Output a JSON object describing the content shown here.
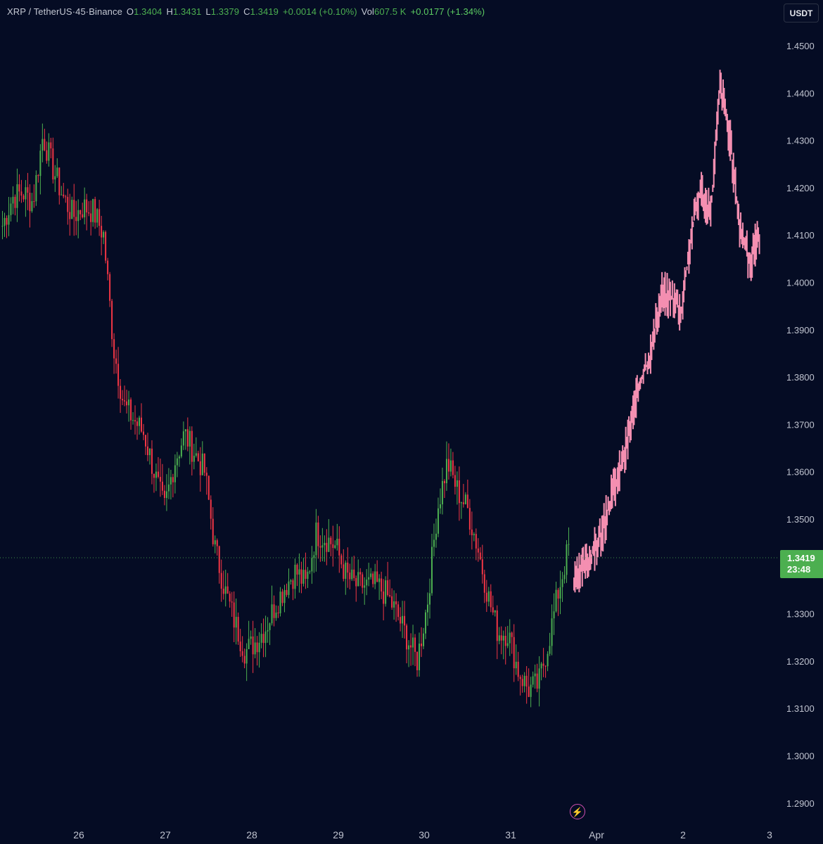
{
  "header": {
    "symbol": "XRP / TetherUS",
    "sep1": " · ",
    "interval": "45",
    "sep2": " · ",
    "exchange": "Binance",
    "open_label": "O",
    "open_value": "1.3404",
    "high_label": "H",
    "high_value": "1.3431",
    "low_label": "L",
    "low_value": "1.3379",
    "close_label": "C",
    "close_value": "1.3419",
    "change": "+0.0014 (+0.10%)",
    "vol_label": "Vol",
    "vol_value": "607.5 K",
    "change2": "+0.0177 (+1.34%)"
  },
  "currency_button": "USDT",
  "price_badge": {
    "price": "1.3419",
    "countdown": "23:48"
  },
  "colors": {
    "background": "#050c24",
    "up": "#4caf50",
    "down": "#f23645",
    "projection": "#f48fb1",
    "axis_text": "#bfc3cf"
  },
  "icons": {
    "lightning": "lightning-icon"
  },
  "chart_data": {
    "type": "candlestick",
    "title": "XRP / TetherUS · 45 · Binance",
    "ylim": [
      1.2855,
      1.4515
    ],
    "y_ticks": [
      "1.4500",
      "1.4400",
      "1.4300",
      "1.4200",
      "1.4100",
      "1.4000",
      "1.3900",
      "1.3800",
      "1.3700",
      "1.3600",
      "1.3500",
      "1.3300",
      "1.3200",
      "1.3100",
      "1.3000",
      "1.2900"
    ],
    "x_ticks": [
      "26",
      "27",
      "28",
      "29",
      "30",
      "31",
      "Apr",
      "2",
      "3"
    ],
    "last_price": 1.3419,
    "candles_approx_close": [
      1.412,
      1.418,
      1.419,
      1.417,
      1.431,
      1.424,
      1.418,
      1.414,
      1.416,
      1.415,
      1.41,
      1.386,
      1.374,
      1.371,
      1.368,
      1.36,
      1.352,
      1.362,
      1.368,
      1.364,
      1.36,
      1.344,
      1.335,
      1.328,
      1.322,
      1.324,
      1.327,
      1.332,
      1.336,
      1.339,
      1.336,
      1.347,
      1.346,
      1.344,
      1.338,
      1.336,
      1.336,
      1.336,
      1.334,
      1.33,
      1.325,
      1.32,
      1.332,
      1.352,
      1.362,
      1.356,
      1.352,
      1.344,
      1.334,
      1.326,
      1.326,
      1.318,
      1.314,
      1.315,
      1.324,
      1.335,
      1.344
    ],
    "projection_path_approx": [
      1.336,
      1.34,
      1.343,
      1.348,
      1.356,
      1.362,
      1.372,
      1.38,
      1.386,
      1.398,
      1.397,
      1.394,
      1.41,
      1.42,
      1.414,
      1.442,
      1.43,
      1.412,
      1.404,
      1.41
    ]
  }
}
